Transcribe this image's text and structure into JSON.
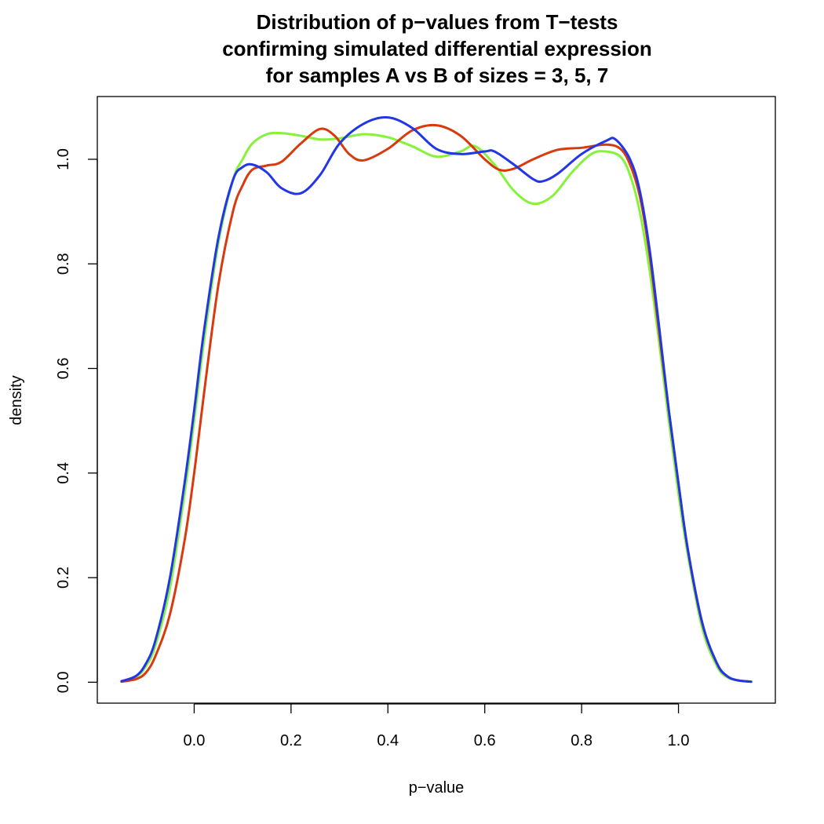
{
  "chart_data": {
    "type": "line",
    "title_lines": [
      "Distribution of p−values from T−tests",
      "confirming simulated differential expression",
      "for samples A vs B of sizes =  3, 5, 7"
    ],
    "xlabel": "p−value",
    "ylabel": "density",
    "xlim": [
      -0.2,
      1.2
    ],
    "ylim": [
      -0.04,
      1.12
    ],
    "x_ticks": [
      0.0,
      0.2,
      0.4,
      0.6,
      0.8,
      1.0
    ],
    "x_tick_labels": [
      "0.0",
      "0.2",
      "0.4",
      "0.6",
      "0.8",
      "1.0"
    ],
    "y_ticks": [
      0.0,
      0.2,
      0.4,
      0.6,
      0.8,
      1.0
    ],
    "y_tick_labels": [
      "0.0",
      "0.2",
      "0.4",
      "0.6",
      "0.8",
      "1.0"
    ],
    "grid": false,
    "legend": "none",
    "series": [
      {
        "color": "#86f23a",
        "x": [
          -0.15,
          -0.12,
          -0.1,
          -0.08,
          -0.05,
          -0.02,
          0.0,
          0.02,
          0.05,
          0.08,
          0.1,
          0.12,
          0.15,
          0.18,
          0.22,
          0.26,
          0.3,
          0.35,
          0.4,
          0.45,
          0.5,
          0.55,
          0.58,
          0.62,
          0.66,
          0.7,
          0.74,
          0.78,
          0.82,
          0.85,
          0.88,
          0.9,
          0.92,
          0.94,
          0.96,
          0.98,
          1.0,
          1.02,
          1.05,
          1.08,
          1.1,
          1.12,
          1.15
        ],
        "y": [
          0.002,
          0.01,
          0.03,
          0.07,
          0.18,
          0.36,
          0.5,
          0.65,
          0.84,
          0.96,
          1.0,
          1.03,
          1.048,
          1.05,
          1.045,
          1.038,
          1.04,
          1.048,
          1.042,
          1.025,
          1.005,
          1.015,
          1.025,
          0.99,
          0.94,
          0.915,
          0.93,
          0.975,
          1.01,
          1.015,
          1.005,
          0.97,
          0.9,
          0.79,
          0.65,
          0.5,
          0.36,
          0.24,
          0.1,
          0.03,
          0.01,
          0.004,
          0.001
        ]
      },
      {
        "color": "#d83a0e",
        "x": [
          -0.15,
          -0.12,
          -0.1,
          -0.08,
          -0.05,
          -0.02,
          0.0,
          0.02,
          0.05,
          0.08,
          0.1,
          0.12,
          0.15,
          0.18,
          0.22,
          0.26,
          0.29,
          0.32,
          0.35,
          0.4,
          0.45,
          0.5,
          0.55,
          0.6,
          0.63,
          0.66,
          0.7,
          0.75,
          0.8,
          0.85,
          0.88,
          0.9,
          0.92,
          0.94,
          0.96,
          0.98,
          1.0,
          1.02,
          1.05,
          1.08,
          1.1,
          1.12,
          1.15
        ],
        "y": [
          0.001,
          0.006,
          0.018,
          0.05,
          0.13,
          0.27,
          0.4,
          0.55,
          0.76,
          0.9,
          0.95,
          0.98,
          0.988,
          0.995,
          1.03,
          1.058,
          1.045,
          1.01,
          0.998,
          1.02,
          1.055,
          1.065,
          1.045,
          1.0,
          0.98,
          0.982,
          1.0,
          1.018,
          1.022,
          1.028,
          1.02,
          0.99,
          0.93,
          0.82,
          0.67,
          0.52,
          0.38,
          0.25,
          0.11,
          0.035,
          0.012,
          0.004,
          0.001
        ]
      },
      {
        "color": "#2236e8",
        "x": [
          -0.15,
          -0.12,
          -0.1,
          -0.08,
          -0.05,
          -0.02,
          0.0,
          0.02,
          0.05,
          0.08,
          0.1,
          0.12,
          0.15,
          0.18,
          0.22,
          0.26,
          0.3,
          0.35,
          0.4,
          0.45,
          0.5,
          0.55,
          0.6,
          0.62,
          0.66,
          0.7,
          0.72,
          0.75,
          0.8,
          0.85,
          0.87,
          0.9,
          0.92,
          0.94,
          0.96,
          0.98,
          1.0,
          1.02,
          1.05,
          1.08,
          1.1,
          1.12,
          1.15
        ],
        "y": [
          0.002,
          0.012,
          0.035,
          0.08,
          0.2,
          0.38,
          0.52,
          0.67,
          0.85,
          0.96,
          0.985,
          0.99,
          0.975,
          0.945,
          0.935,
          0.97,
          1.03,
          1.068,
          1.08,
          1.06,
          1.02,
          1.01,
          1.015,
          1.015,
          0.99,
          0.962,
          0.958,
          0.972,
          1.01,
          1.035,
          1.038,
          1.0,
          0.94,
          0.83,
          0.68,
          0.52,
          0.38,
          0.25,
          0.11,
          0.035,
          0.012,
          0.004,
          0.001
        ]
      }
    ]
  }
}
